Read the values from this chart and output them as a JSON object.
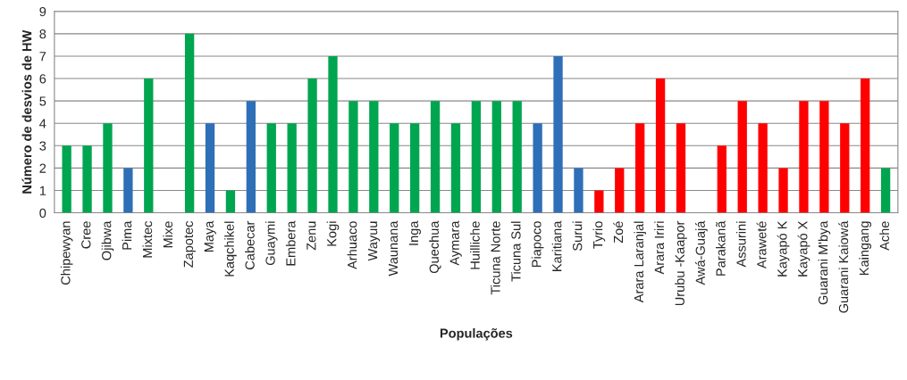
{
  "chart_data": {
    "type": "bar",
    "xlabel": "Populações",
    "ylabel": "Número de desvios de HW",
    "categories": [
      "Chipewyan",
      "Cree",
      "Ojibwa",
      "Pima",
      "Mixtec",
      "Mixe",
      "Zapotec",
      "Maya",
      "Kaqchikel",
      "Cabecar",
      "Guaymi",
      "Embera",
      "Zenu",
      "Kogi",
      "Arhuaco",
      "Wayuu",
      "Waunana",
      "Inga",
      "Quechua",
      "Aymara",
      "Huilliche",
      "Ticuna Norte",
      "Ticuna Sul",
      "Piapoco",
      "Karitiana",
      "Surui",
      "Tyrio",
      "Zoé",
      "Arara Laranjal",
      "Arara Iriri",
      "Urubu -Kaapor",
      "Awá-Guajá",
      "Parakanã",
      "Assurini",
      "Araweté",
      "Kayapó K",
      "Kayapó X",
      "Guarani M'bya",
      "Guarani Kaiowá",
      "Kaingang",
      "Ache"
    ],
    "values": [
      3,
      3,
      4,
      2,
      6,
      0,
      8,
      4,
      1,
      5,
      4,
      4,
      6,
      7,
      5,
      5,
      4,
      4,
      5,
      4,
      5,
      5,
      5,
      4,
      7,
      2,
      1,
      2,
      4,
      6,
      4,
      0,
      3,
      5,
      4,
      2,
      5,
      5,
      4,
      6,
      2
    ],
    "colors": [
      "#00a550",
      "#00a550",
      "#00a550",
      "#2e6fb7",
      "#00a550",
      "#00a550",
      "#00a550",
      "#2e6fb7",
      "#00a550",
      "#2e6fb7",
      "#00a550",
      "#00a550",
      "#00a550",
      "#00a550",
      "#00a550",
      "#00a550",
      "#00a550",
      "#00a550",
      "#00a550",
      "#00a550",
      "#00a550",
      "#00a550",
      "#00a550",
      "#2e6fb7",
      "#2e6fb7",
      "#2e6fb7",
      "#ff0000",
      "#ff0000",
      "#ff0000",
      "#ff0000",
      "#ff0000",
      "#ff0000",
      "#ff0000",
      "#ff0000",
      "#ff0000",
      "#ff0000",
      "#ff0000",
      "#ff0000",
      "#ff0000",
      "#ff0000",
      "#00a550"
    ],
    "ylim": [
      0,
      9
    ],
    "yticks": [
      0,
      1,
      2,
      3,
      4,
      5,
      6,
      7,
      8,
      9
    ],
    "grid": "y",
    "legend": false
  }
}
